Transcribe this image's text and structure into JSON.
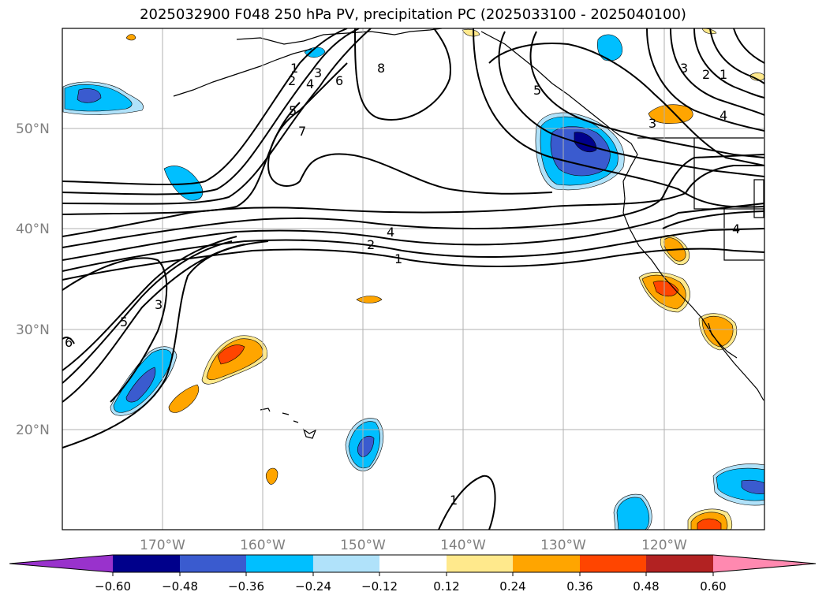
{
  "title": "2025032900 F048 250 hPa PV, precipitation PC (2025033100 - 2025040100)",
  "map": {
    "lon_labels": [
      "170°W",
      "160°W",
      "150°W",
      "140°W",
      "130°W",
      "120°W"
    ],
    "lat_labels": [
      "50°N",
      "40°N",
      "30°N",
      "20°N"
    ],
    "contour_labels": [
      "1",
      "2",
      "3",
      "4",
      "5",
      "6",
      "7",
      "8",
      "5",
      "3",
      "4",
      "2",
      "1",
      "3",
      "2",
      "1",
      "4",
      "4",
      "1",
      "3",
      "5",
      "6"
    ]
  },
  "colorbar": {
    "ticks": [
      "−0.60",
      "−0.48",
      "−0.36",
      "−0.24",
      "−0.12",
      "0.12",
      "0.24",
      "0.36",
      "0.48",
      "0.60"
    ],
    "colors": [
      "#9932cc",
      "#00008b",
      "#3a5bcf",
      "#00bfff",
      "#b0e2fa",
      "#ffffff",
      "#ffe98c",
      "#ffa500",
      "#ff4500",
      "#b22222",
      "#ff89b0"
    ]
  },
  "colors": {
    "neg_strong": "#00008b",
    "neg_mid": "#3a5bcf",
    "neg": "#00bfff",
    "neg_weak": "#b0e2fa",
    "pos_weak": "#ffe98c",
    "pos": "#ffa500",
    "pos_mid": "#ff4500",
    "grid": "#b0b0b0"
  }
}
